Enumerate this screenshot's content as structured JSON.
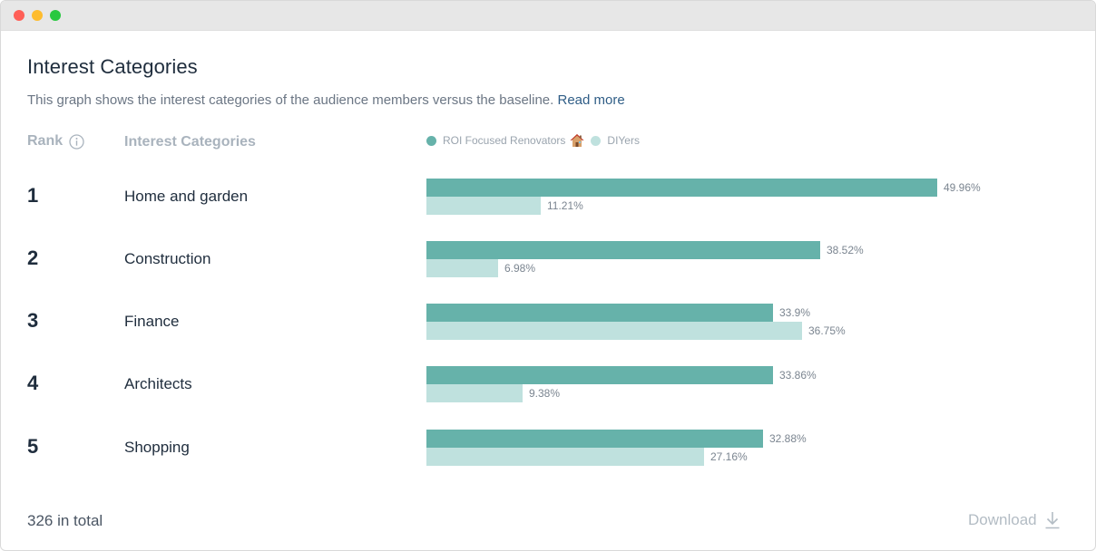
{
  "header": {
    "title": "Interest Categories",
    "subtitle": "This graph shows the interest categories of the audience members versus the baseline.",
    "read_more": "Read more"
  },
  "columns": {
    "rank": "Rank",
    "category": "Interest Categories"
  },
  "legend": {
    "primary": {
      "label": "ROI Focused Renovators",
      "color": "#66b2aa",
      "icon": "house-emoji"
    },
    "secondary": {
      "label": "DIYers",
      "color": "#bfe1de"
    }
  },
  "chart_data": {
    "type": "bar",
    "orientation": "horizontal",
    "categories": [
      "Home and garden",
      "Construction",
      "Finance",
      "Architects",
      "Shopping"
    ],
    "series": [
      {
        "name": "ROI Focused Renovators",
        "values": [
          49.96,
          38.52,
          33.9,
          33.86,
          32.88
        ],
        "labels": [
          "49.96%",
          "38.52%",
          "33.9%",
          "33.86%",
          "32.88%"
        ]
      },
      {
        "name": "DIYers",
        "values": [
          11.21,
          6.98,
          36.75,
          9.38,
          27.16
        ],
        "labels": [
          "11.21%",
          "6.98%",
          "36.75%",
          "9.38%",
          "27.16%"
        ]
      }
    ]
  },
  "rows": [
    {
      "rank": "1",
      "category": "Home and garden"
    },
    {
      "rank": "2",
      "category": "Construction"
    },
    {
      "rank": "3",
      "category": "Finance"
    },
    {
      "rank": "4",
      "category": "Architects"
    },
    {
      "rank": "5",
      "category": "Shopping"
    }
  ],
  "footer": {
    "total": "326 in total",
    "download": "Download"
  }
}
